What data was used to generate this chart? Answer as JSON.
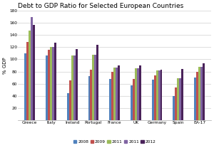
{
  "title": "Debt to GDP Ratio for Selected European Countries",
  "ylabel": "% GDP",
  "countries": [
    "Greece",
    "Italy",
    "Ireland",
    "Portugal",
    "France",
    "UK",
    "Germany",
    "Spain",
    "EA-17"
  ],
  "years": [
    "2008",
    "2009",
    "2011",
    "2011",
    "2012"
  ],
  "colors": [
    "#4f81bd",
    "#c0504d",
    "#9bbb59",
    "#8064a2",
    "#4a235a"
  ],
  "data": {
    "Greece": [
      110,
      129,
      148,
      170,
      157
    ],
    "Italy": [
      106,
      116,
      120,
      120,
      127
    ],
    "Ireland": [
      44,
      65,
      106,
      106,
      117
    ],
    "Portugal": [
      72,
      83,
      108,
      108,
      124
    ],
    "France": [
      68,
      79,
      86,
      86,
      90
    ],
    "UK": [
      57,
      68,
      85,
      85,
      90
    ],
    "Germany": [
      66,
      73,
      82,
      82,
      83
    ],
    "Spain": [
      40,
      54,
      69,
      69,
      84
    ],
    "EA-17": [
      70,
      79,
      88,
      88,
      93
    ]
  },
  "ylim": [
    0,
    180
  ],
  "yticks": [
    0,
    20,
    40,
    60,
    80,
    100,
    120,
    140,
    160,
    180
  ],
  "ytick_labels": [
    "",
    "20",
    "40",
    "60",
    "80",
    "100",
    "120",
    "140",
    "160",
    "180"
  ],
  "background_color": "#ffffff",
  "plot_bg_color": "#ffffff",
  "grid_color": "#d0d0d0",
  "title_fontsize": 6.5,
  "label_fontsize": 5,
  "tick_fontsize": 4.2,
  "legend_fontsize": 4.2
}
